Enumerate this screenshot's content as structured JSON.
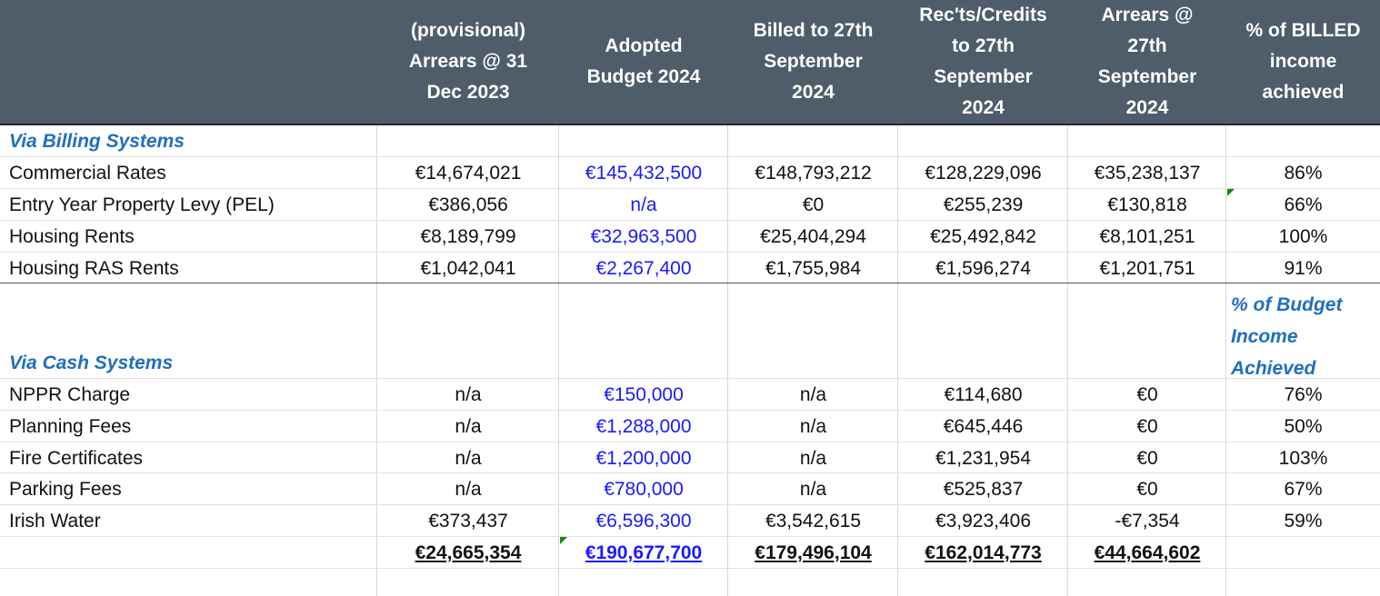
{
  "headers": {
    "arrears_2023": "(provisional)\nArrears @ 31\nDec 2023",
    "budget_2024": "Adopted\nBudget 2024",
    "billed": "Billed to 27th\nSeptember\n2024",
    "receipts": "Rec'ts/Credits\nto 27th\nSeptember\n2024",
    "arrears_sept": "Arrears @\n27th\nSeptember\n2024",
    "pct_billed": "% of BILLED\nincome\nachieved"
  },
  "sections": {
    "billing": "Via Billing Systems",
    "cash": "Via Cash Systems",
    "pct_budget_note": "% of Budget\nIncome\nAchieved"
  },
  "billing_rows": [
    {
      "label": "Commercial Rates",
      "arrears_2023": "€14,674,021",
      "budget": "€145,432,500",
      "billed": "€148,793,212",
      "receipts": "€128,229,096",
      "arrears_sept": "€35,238,137",
      "pct": "86%"
    },
    {
      "label": "Entry Year Property Levy (PEL)",
      "arrears_2023": "€386,056",
      "budget": "n/a",
      "billed": "€0",
      "receipts": "€255,239",
      "arrears_sept": "€130,818",
      "pct": "66%"
    },
    {
      "label": "Housing Rents",
      "arrears_2023": "€8,189,799",
      "budget": "€32,963,500",
      "billed": "€25,404,294",
      "receipts": "€25,492,842",
      "arrears_sept": "€8,101,251",
      "pct": "100%"
    },
    {
      "label": "Housing RAS Rents",
      "arrears_2023": "€1,042,041",
      "budget": "€2,267,400",
      "billed": "€1,755,984",
      "receipts": "€1,596,274",
      "arrears_sept": "€1,201,751",
      "pct": "91%"
    }
  ],
  "cash_rows": [
    {
      "label": "NPPR Charge",
      "arrears_2023": "n/a",
      "budget": "€150,000",
      "billed": "n/a",
      "receipts": "€114,680",
      "arrears_sept": "€0",
      "pct": "76%"
    },
    {
      "label": "Planning Fees",
      "arrears_2023": "n/a",
      "budget": "€1,288,000",
      "billed": "n/a",
      "receipts": "€645,446",
      "arrears_sept": "€0",
      "pct": "50%"
    },
    {
      "label": "Fire Certificates",
      "arrears_2023": "n/a",
      "budget": "€1,200,000",
      "billed": "n/a",
      "receipts": "€1,231,954",
      "arrears_sept": "€0",
      "pct": "103%"
    },
    {
      "label": "Parking Fees",
      "arrears_2023": "n/a",
      "budget": "€780,000",
      "billed": "n/a",
      "receipts": "€525,837",
      "arrears_sept": "€0",
      "pct": "67%"
    },
    {
      "label": "Irish Water",
      "arrears_2023": "€373,437",
      "budget": "€6,596,300",
      "billed": "€3,542,615",
      "receipts": "€3,923,406",
      "arrears_sept": "-€7,354",
      "pct": "59%"
    }
  ],
  "totals": {
    "arrears_2023": "€24,665,354",
    "budget": "€190,677,700",
    "billed": "€179,496,104",
    "receipts": "€162,014,773",
    "arrears_sept": "€44,664,602"
  },
  "colors": {
    "header_bg": "#4f5d6a",
    "section_text": "#1f6fbf",
    "budget_text": "#1a1aff"
  }
}
